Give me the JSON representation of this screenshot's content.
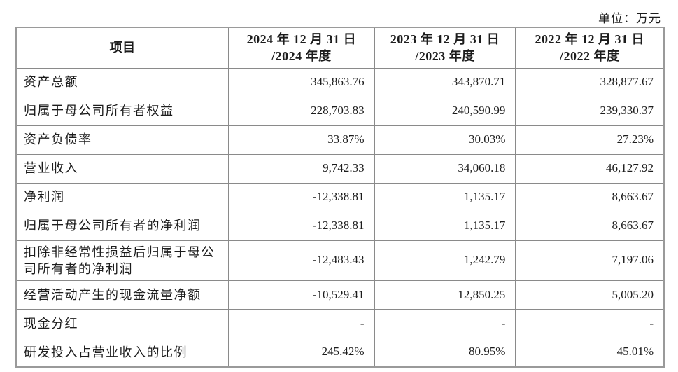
{
  "unit_label": "单位：万元",
  "table": {
    "header": {
      "item": "项目",
      "col_2024": "2024 年 12 月 31 日\n/2024 年度",
      "col_2023": "2023 年 12 月 31 日\n/2023 年度",
      "col_2022": "2022 年 12 月 31 日\n/2022 年度"
    },
    "rows": [
      {
        "label": "资产总额",
        "v2024": "345,863.76",
        "v2023": "343,870.71",
        "v2022": "328,877.67"
      },
      {
        "label": "归属于母公司所有者权益",
        "v2024": "228,703.83",
        "v2023": "240,590.99",
        "v2022": "239,330.37"
      },
      {
        "label": "资产负债率",
        "v2024": "33.87%",
        "v2023": "30.03%",
        "v2022": "27.23%"
      },
      {
        "label": "营业收入",
        "v2024": "9,742.33",
        "v2023": "34,060.18",
        "v2022": "46,127.92"
      },
      {
        "label": "净利润",
        "v2024": "-12,338.81",
        "v2023": "1,135.17",
        "v2022": "8,663.67"
      },
      {
        "label": "归属于母公司所有者的净利润",
        "v2024": "-12,338.81",
        "v2023": "1,135.17",
        "v2022": "8,663.67"
      },
      {
        "label": "扣除非经常性损益后归属于母公司所有者的净利润",
        "v2024": "-12,483.43",
        "v2023": "1,242.79",
        "v2022": "7,197.06"
      },
      {
        "label": "经营活动产生的现金流量净额",
        "v2024": "-10,529.41",
        "v2023": "12,850.25",
        "v2022": "5,005.20"
      },
      {
        "label": "现金分红",
        "v2024": "-",
        "v2023": "-",
        "v2022": "-"
      },
      {
        "label": "研发投入占营业收入的比例",
        "v2024": "245.42%",
        "v2023": "80.95%",
        "v2022": "45.01%"
      }
    ]
  }
}
